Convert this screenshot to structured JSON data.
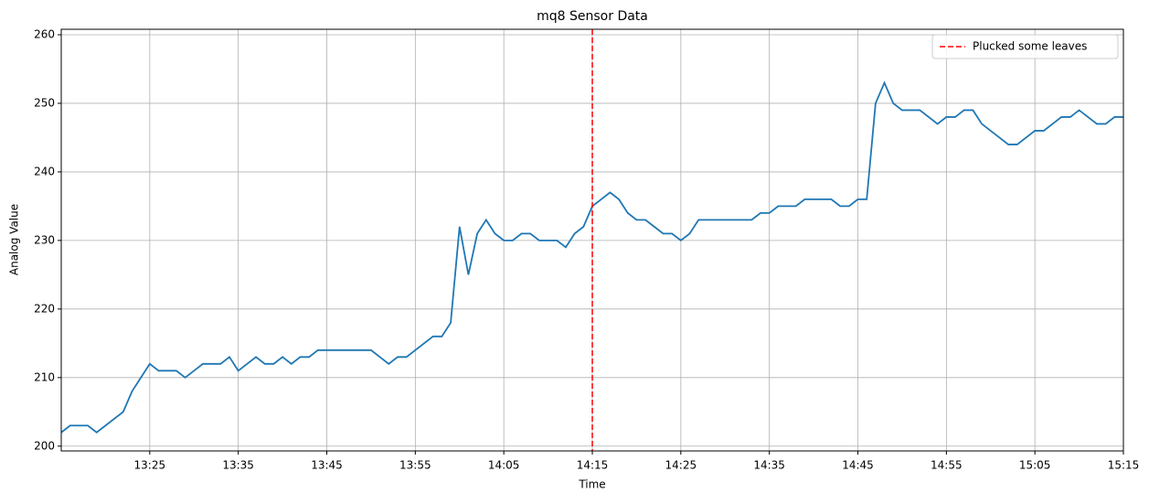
{
  "chart_data": {
    "type": "line",
    "title": "mq8 Sensor Data",
    "x_label": "Time",
    "y_label": "Analog Value",
    "x": [
      "13:15",
      "13:16",
      "13:17",
      "13:18",
      "13:19",
      "13:20",
      "13:21",
      "13:22",
      "13:23",
      "13:24",
      "13:25",
      "13:26",
      "13:27",
      "13:28",
      "13:29",
      "13:30",
      "13:31",
      "13:32",
      "13:33",
      "13:34",
      "13:35",
      "13:36",
      "13:37",
      "13:38",
      "13:39",
      "13:40",
      "13:41",
      "13:42",
      "13:43",
      "13:44",
      "13:45",
      "13:46",
      "13:47",
      "13:48",
      "13:49",
      "13:50",
      "13:51",
      "13:52",
      "13:53",
      "13:54",
      "13:55",
      "13:56",
      "13:57",
      "13:58",
      "13:59",
      "14:00",
      "14:01",
      "14:02",
      "14:03",
      "14:04",
      "14:05",
      "14:06",
      "14:07",
      "14:08",
      "14:09",
      "14:10",
      "14:11",
      "14:12",
      "14:13",
      "14:14",
      "14:15",
      "14:16",
      "14:17",
      "14:18",
      "14:19",
      "14:20",
      "14:21",
      "14:22",
      "14:23",
      "14:24",
      "14:25",
      "14:26",
      "14:27",
      "14:28",
      "14:29",
      "14:30",
      "14:31",
      "14:32",
      "14:33",
      "14:34",
      "14:35",
      "14:36",
      "14:37",
      "14:38",
      "14:39",
      "14:40",
      "14:41",
      "14:42",
      "14:43",
      "14:44",
      "14:45",
      "14:46",
      "14:47",
      "14:48",
      "14:49",
      "14:50",
      "14:51",
      "14:52",
      "14:53",
      "14:54",
      "14:55",
      "14:56",
      "14:57",
      "14:58",
      "14:59",
      "15:00",
      "15:01",
      "15:02",
      "15:03",
      "15:04",
      "15:05",
      "15:06",
      "15:07",
      "15:08",
      "15:09",
      "15:10",
      "15:11",
      "15:12",
      "15:13",
      "15:14",
      "15:15"
    ],
    "values": [
      202,
      203,
      203,
      203,
      202,
      203,
      204,
      205,
      208,
      210,
      212,
      211,
      211,
      211,
      210,
      211,
      212,
      212,
      212,
      213,
      211,
      212,
      213,
      212,
      212,
      213,
      212,
      213,
      213,
      214,
      214,
      214,
      214,
      214,
      214,
      214,
      213,
      212,
      213,
      213,
      214,
      215,
      216,
      216,
      218,
      232,
      225,
      231,
      233,
      231,
      230,
      230,
      231,
      231,
      230,
      230,
      230,
      229,
      231,
      232,
      235,
      236,
      237,
      236,
      234,
      233,
      233,
      232,
      231,
      231,
      230,
      231,
      233,
      233,
      233,
      233,
      233,
      233,
      233,
      234,
      234,
      235,
      235,
      235,
      236,
      236,
      236,
      236,
      235,
      235,
      236,
      236,
      250,
      253,
      250,
      249,
      249,
      249,
      248,
      247,
      248,
      248,
      249,
      249,
      247,
      246,
      245,
      244,
      244,
      245,
      246,
      246,
      247,
      248,
      248,
      249,
      248,
      247,
      247,
      248,
      248
    ],
    "color": "#1f77b4",
    "vline": {
      "x": "14:15",
      "label": "Plucked some leaves",
      "color": "#ff0000"
    },
    "xlim": [
      "13:15",
      "15:15"
    ],
    "xticks": [
      "13:25",
      "13:35",
      "13:45",
      "13:55",
      "14:05",
      "14:15",
      "14:25",
      "14:35",
      "14:45",
      "14:55",
      "15:05",
      "15:15"
    ],
    "ylim": [
      199.3,
      260.8
    ],
    "yticks": [
      200,
      210,
      220,
      230,
      240,
      250,
      260
    ],
    "grid": true,
    "legend": "upper right"
  }
}
